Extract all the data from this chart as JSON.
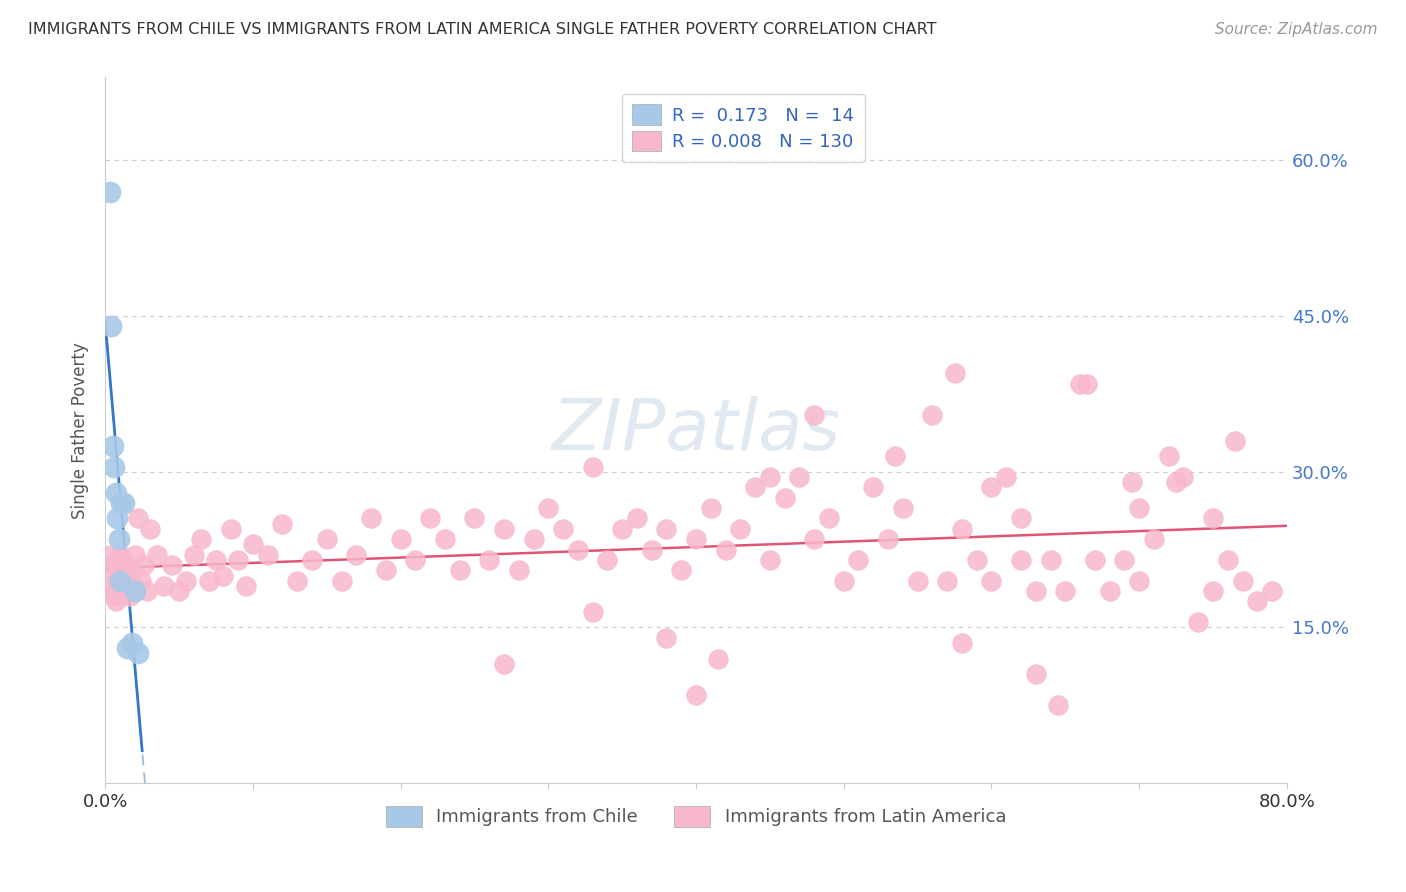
{
  "title": "IMMIGRANTS FROM CHILE VS IMMIGRANTS FROM LATIN AMERICA SINGLE FATHER POVERTY CORRELATION CHART",
  "source": "Source: ZipAtlas.com",
  "ylabel": "Single Father Poverty",
  "ytick_values": [
    0.15,
    0.3,
    0.45,
    0.6
  ],
  "ytick_labels": [
    "15.0%",
    "30.0%",
    "45.0%",
    "60.0%"
  ],
  "legend_label1": "Immigrants from Chile",
  "legend_label2": "Immigrants from Latin America",
  "R1": "0.173",
  "N1": "14",
  "R2": "0.008",
  "N2": "130",
  "color_chile": "#a8c8e8",
  "color_latam": "#f8b8cc",
  "trendline_chile_solid_color": "#3377cc",
  "trendline_chile_dash_color": "#99bbdd",
  "trendline_latam_color": "#e05575",
  "watermark": "ZIPatlas",
  "background_color": "#ffffff",
  "xmin": 0.0,
  "xmax": 0.8,
  "ymin": 0.0,
  "ymax": 0.68,
  "chile_x": [
    0.003,
    0.004,
    0.005,
    0.006,
    0.007,
    0.008,
    0.009,
    0.01,
    0.011,
    0.013,
    0.015,
    0.018,
    0.02,
    0.022
  ],
  "chile_y": [
    0.57,
    0.44,
    0.325,
    0.305,
    0.28,
    0.255,
    0.235,
    0.195,
    0.27,
    0.27,
    0.13,
    0.135,
    0.185,
    0.125
  ],
  "latam_x": [
    0.003,
    0.004,
    0.005,
    0.005,
    0.006,
    0.006,
    0.007,
    0.007,
    0.008,
    0.008,
    0.009,
    0.01,
    0.011,
    0.012,
    0.013,
    0.014,
    0.015,
    0.016,
    0.017,
    0.018,
    0.019,
    0.02,
    0.022,
    0.024,
    0.026,
    0.028,
    0.03,
    0.035,
    0.04,
    0.045,
    0.05,
    0.055,
    0.06,
    0.065,
    0.07,
    0.075,
    0.08,
    0.085,
    0.09,
    0.095,
    0.1,
    0.11,
    0.12,
    0.13,
    0.14,
    0.15,
    0.16,
    0.17,
    0.18,
    0.19,
    0.2,
    0.21,
    0.22,
    0.23,
    0.24,
    0.25,
    0.26,
    0.27,
    0.28,
    0.29,
    0.3,
    0.31,
    0.32,
    0.33,
    0.34,
    0.35,
    0.36,
    0.37,
    0.38,
    0.39,
    0.4,
    0.41,
    0.42,
    0.43,
    0.44,
    0.45,
    0.46,
    0.47,
    0.48,
    0.49,
    0.5,
    0.51,
    0.52,
    0.53,
    0.54,
    0.55,
    0.56,
    0.57,
    0.58,
    0.59,
    0.6,
    0.61,
    0.62,
    0.63,
    0.64,
    0.65,
    0.66,
    0.67,
    0.68,
    0.69,
    0.7,
    0.71,
    0.72,
    0.73,
    0.74,
    0.75,
    0.76,
    0.77,
    0.78,
    0.79
  ],
  "latam_y": [
    0.22,
    0.19,
    0.21,
    0.185,
    0.2,
    0.18,
    0.215,
    0.175,
    0.205,
    0.18,
    0.195,
    0.22,
    0.19,
    0.215,
    0.185,
    0.2,
    0.21,
    0.195,
    0.18,
    0.205,
    0.19,
    0.22,
    0.255,
    0.195,
    0.21,
    0.185,
    0.245,
    0.22,
    0.19,
    0.21,
    0.185,
    0.195,
    0.22,
    0.235,
    0.195,
    0.215,
    0.2,
    0.245,
    0.215,
    0.19,
    0.23,
    0.22,
    0.25,
    0.195,
    0.215,
    0.235,
    0.195,
    0.22,
    0.255,
    0.205,
    0.235,
    0.215,
    0.255,
    0.235,
    0.205,
    0.255,
    0.215,
    0.245,
    0.205,
    0.235,
    0.265,
    0.245,
    0.225,
    0.305,
    0.215,
    0.245,
    0.255,
    0.225,
    0.245,
    0.205,
    0.235,
    0.265,
    0.225,
    0.245,
    0.285,
    0.215,
    0.275,
    0.295,
    0.235,
    0.255,
    0.195,
    0.215,
    0.285,
    0.235,
    0.265,
    0.195,
    0.355,
    0.195,
    0.245,
    0.215,
    0.195,
    0.295,
    0.215,
    0.185,
    0.215,
    0.185,
    0.385,
    0.215,
    0.185,
    0.215,
    0.195,
    0.235,
    0.315,
    0.295,
    0.155,
    0.185,
    0.215,
    0.195,
    0.175,
    0.185
  ],
  "latam_outlier_x": [
    0.48,
    0.575,
    0.665,
    0.695,
    0.725,
    0.75,
    0.765,
    0.535,
    0.45,
    0.6,
    0.62,
    0.7,
    0.63,
    0.645,
    0.38,
    0.415,
    0.33,
    0.27,
    0.4,
    0.58
  ],
  "latam_outlier_y": [
    0.355,
    0.395,
    0.385,
    0.29,
    0.29,
    0.255,
    0.33,
    0.315,
    0.295,
    0.285,
    0.255,
    0.265,
    0.105,
    0.075,
    0.14,
    0.12,
    0.165,
    0.115,
    0.085,
    0.135
  ]
}
